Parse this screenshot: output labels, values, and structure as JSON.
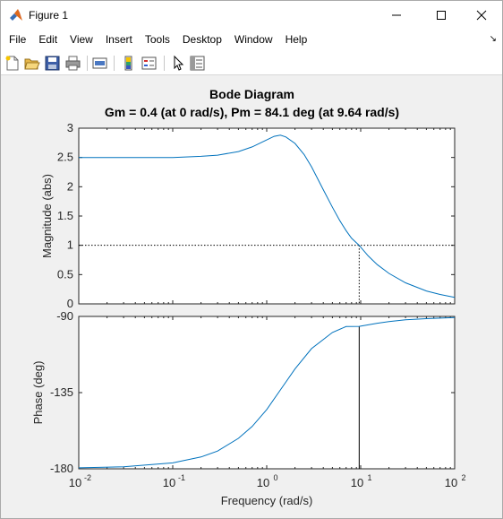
{
  "window": {
    "title": "Figure 1",
    "minimize_symbol": "—",
    "maximize_symbol": "☐",
    "close_symbol": "✕"
  },
  "menu": {
    "items": [
      "File",
      "Edit",
      "View",
      "Insert",
      "Tools",
      "Desktop",
      "Window",
      "Help"
    ],
    "overflow_symbol": "↘"
  },
  "toolbar": {
    "buttons": [
      "new-figure-icon",
      "open-file-icon",
      "save-icon",
      "print-icon",
      "link-plot-icon",
      "colorbar-icon",
      "legend-icon",
      "pointer-icon",
      "property-inspector-icon"
    ]
  },
  "plot": {
    "title": "Bode Diagram",
    "subtitle": "Gm = 0.4 (at 0 rad/s),  Pm = 84.1 deg (at 9.64 rad/s)",
    "line_color": "#0072bd"
  },
  "chart_data": [
    {
      "type": "line",
      "ylabel": "Magnitude (abs)",
      "xscale": "log",
      "xlim": [
        0.01,
        100
      ],
      "ylim": [
        0,
        3
      ],
      "yticks": [
        "0",
        "0.5",
        "1",
        "1.5",
        "2",
        "2.5",
        "3"
      ],
      "reference_line": {
        "y": 1,
        "style": "dotted"
      },
      "crossover_marker": {
        "x": 9.64,
        "style": "dotted"
      },
      "series": [
        {
          "x": [
            0.01,
            0.05,
            0.1,
            0.2,
            0.3,
            0.5,
            0.7,
            1.0,
            1.2,
            1.4,
            1.6,
            2.0,
            2.5,
            3.0,
            4.0,
            5.0,
            6.0,
            7.0,
            8.0,
            9.64,
            12,
            15,
            20,
            30,
            50,
            70,
            100
          ],
          "y": [
            2.5,
            2.5,
            2.5,
            2.52,
            2.54,
            2.6,
            2.68,
            2.8,
            2.86,
            2.88,
            2.85,
            2.74,
            2.55,
            2.34,
            1.95,
            1.65,
            1.42,
            1.25,
            1.12,
            1.0,
            0.82,
            0.67,
            0.52,
            0.36,
            0.22,
            0.16,
            0.11
          ]
        }
      ]
    },
    {
      "type": "line",
      "ylabel": "Phase (deg)",
      "xlabel": "Frequency  (rad/s)",
      "xscale": "log",
      "xlim": [
        0.01,
        100
      ],
      "ylim": [
        -180,
        -90
      ],
      "yticks": [
        "-180",
        "-135",
        "-90"
      ],
      "xticks": [
        "10",
        "10",
        "10",
        "10",
        "10"
      ],
      "xtick_exponents": [
        "-2",
        "-1",
        "0",
        "1",
        "2"
      ],
      "crossover_marker": {
        "x": 9.64,
        "style": "solid"
      },
      "series": [
        {
          "x": [
            0.01,
            0.03,
            0.1,
            0.2,
            0.3,
            0.5,
            0.7,
            1.0,
            1.5,
            2.0,
            3.0,
            5.0,
            7.0,
            9.64,
            15,
            20,
            30,
            50,
            100
          ],
          "y": [
            -179.4,
            -178.8,
            -176.5,
            -173,
            -169.5,
            -162,
            -155,
            -145,
            -131,
            -121,
            -109,
            -99.5,
            -96,
            -95.9,
            -94,
            -93,
            -92,
            -91.3,
            -90.7
          ]
        }
      ]
    }
  ]
}
